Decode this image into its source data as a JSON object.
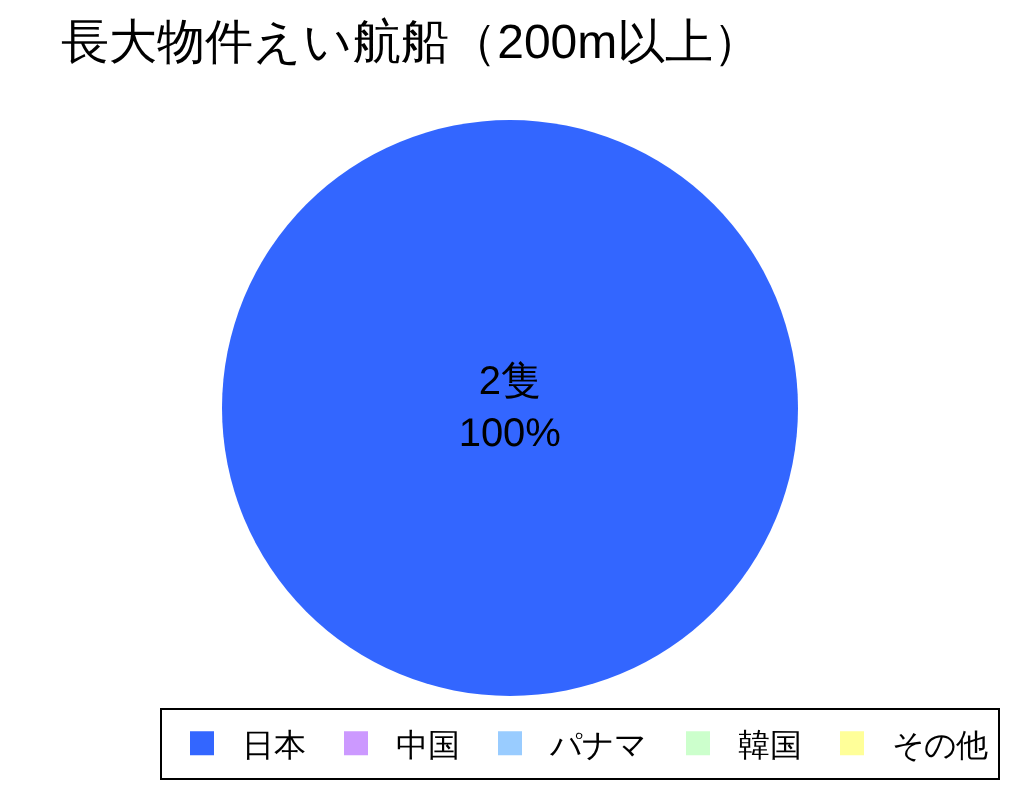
{
  "chart_data": {
    "type": "pie",
    "title": "長大物件えい航船（200m以上）",
    "categories": [
      "日本",
      "中国",
      "パナマ",
      "韓国",
      "その他"
    ],
    "values": [
      2,
      0,
      0,
      0,
      0
    ],
    "colors": [
      "#3366ff",
      "#cc99ff",
      "#99ccff",
      "#ccffcc",
      "#ffff99"
    ],
    "value_labels": [
      "2隻\n100%",
      null,
      null,
      null,
      null
    ],
    "legend": "bottom"
  }
}
